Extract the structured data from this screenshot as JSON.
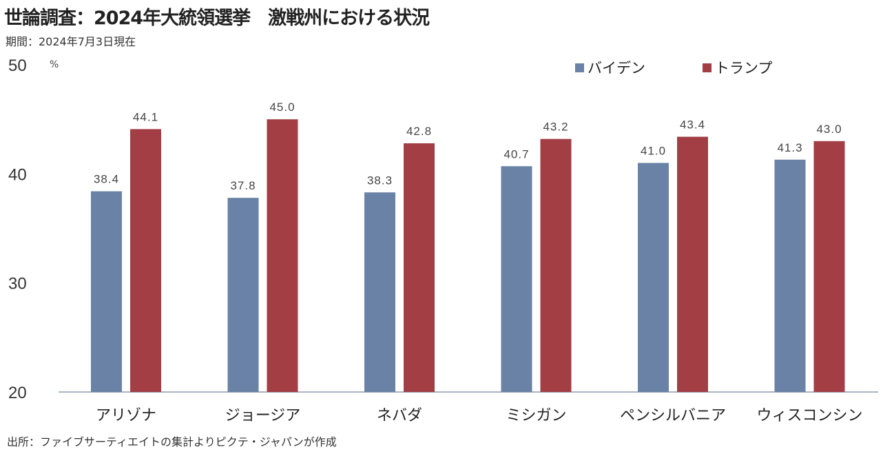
{
  "chart_data": {
    "type": "bar",
    "title": "世論調査：2024年大統領選挙　激戦州における状況",
    "subtitle": "期間：2024年7月3日現在",
    "source": "出所：ファイブサーティエイトの集計よりピクテ・ジャパンが作成",
    "ylabel": "%",
    "ylim": [
      20,
      50
    ],
    "yticks": [
      20,
      30,
      40,
      50
    ],
    "grid": false,
    "legend_position": "top-right",
    "categories": [
      "アリゾナ",
      "ジョージア",
      "ネバダ",
      "ミシガン",
      "ペンシルバニア",
      "ウィスコンシン"
    ],
    "series": [
      {
        "name": "バイデン",
        "color": "#6A82A5",
        "values": [
          38.4,
          37.8,
          38.3,
          40.7,
          41.0,
          41.3
        ]
      },
      {
        "name": "トランプ",
        "color": "#A23E44",
        "values": [
          44.1,
          45.0,
          42.8,
          43.2,
          43.4,
          43.0
        ]
      }
    ]
  }
}
